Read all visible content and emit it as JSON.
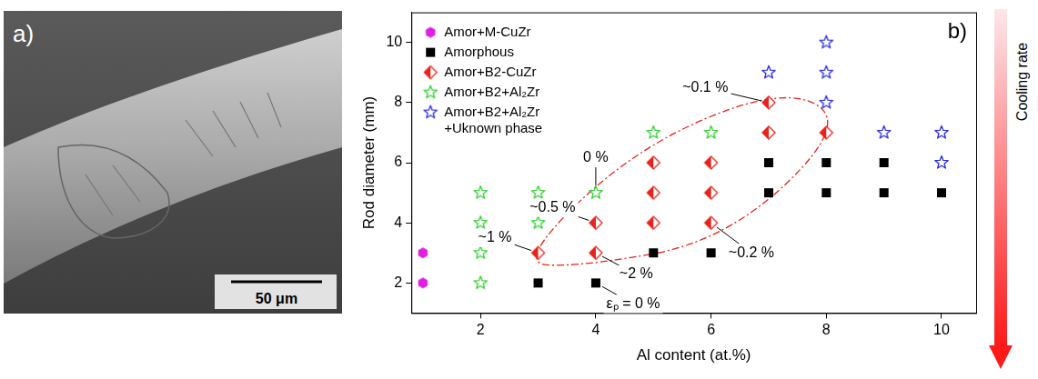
{
  "panel_a": {
    "label": "a)",
    "scale_bar": "50 μm"
  },
  "chart_data": {
    "type": "scatter",
    "panel_label": "b)",
    "x_label": "Al content (at.%)",
    "y_label": "Rod diameter (mm)",
    "xlim": [
      0.8,
      10.6
    ],
    "xticks": [
      2,
      4,
      6,
      8,
      10
    ],
    "ylim": [
      1,
      11
    ],
    "yticks": [
      2,
      4,
      6,
      8,
      10
    ],
    "grid": false,
    "legend": "top-left",
    "series": [
      {
        "name": "Amor+M-CuZr",
        "color": "#e020e0",
        "marker": "hexagon",
        "x": [
          1,
          1
        ],
        "values": [
          2,
          3
        ]
      },
      {
        "name": "Amorphous",
        "color": "#000000",
        "marker": "square",
        "x": [
          3,
          4,
          5,
          6,
          7,
          7,
          8,
          8,
          9,
          9,
          10
        ],
        "values": [
          2,
          2,
          3,
          3,
          5,
          6,
          5,
          6,
          5,
          6,
          5
        ]
      },
      {
        "name": "Amor+B2-CuZr",
        "color": "#e8231c",
        "marker": "half-diamond",
        "x": [
          3,
          4,
          4,
          5,
          5,
          5,
          6,
          6,
          6,
          7,
          7,
          8
        ],
        "values": [
          3,
          3,
          4,
          4,
          5,
          6,
          4,
          5,
          6,
          7,
          8,
          7
        ]
      },
      {
        "name": "Amor+B2+Al₂Zr",
        "color": "#2fcf2f",
        "marker": "star",
        "x": [
          2,
          2,
          2,
          2,
          3,
          3,
          4,
          5,
          6
        ],
        "values": [
          2,
          3,
          4,
          5,
          4,
          5,
          5,
          7,
          7
        ]
      },
      {
        "name": "Amor+B2+Al₂Zr +Uknown phase",
        "color": "#2a2ae0",
        "marker": "star",
        "x": [
          7,
          8,
          8,
          8,
          9,
          10,
          10
        ],
        "values": [
          9,
          10,
          9,
          8,
          7,
          7,
          6
        ]
      }
    ],
    "annotations": [
      {
        "text": "~0.1 %",
        "x": 7,
        "y": 8
      },
      {
        "text": "0 %",
        "x": 4,
        "y": 5
      },
      {
        "text": "~0.5 %",
        "x": 4,
        "y": 4
      },
      {
        "text": "~1 %",
        "x": 3,
        "y": 3
      },
      {
        "text": "~2 %",
        "x": 4,
        "y": 3
      },
      {
        "text": "~0.2 %",
        "x": 6,
        "y": 4
      },
      {
        "text": "εₚ = 0 %",
        "x": 4,
        "y": 2
      }
    ],
    "cooling_rate_label": "Cooling rate"
  }
}
